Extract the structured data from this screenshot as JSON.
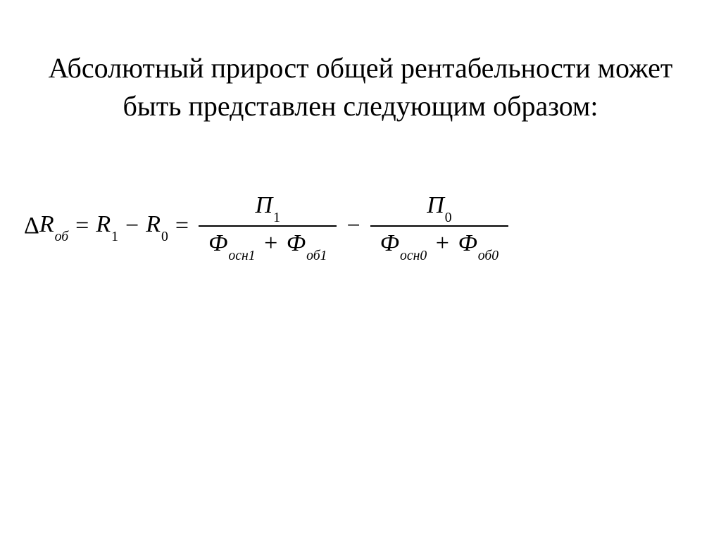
{
  "title": "Абсолютный прирост общей рентабельности может быть представлен следующим образом:",
  "formula": {
    "lhs": {
      "delta": "Δ",
      "R": "R",
      "sub_ob": "об"
    },
    "eq1": "=",
    "r1": {
      "R": "R",
      "sub": "1"
    },
    "minus1": "−",
    "r0": {
      "R": "R",
      "sub": "0"
    },
    "eq2": "=",
    "frac1": {
      "num": {
        "P": "П",
        "sub": "1"
      },
      "den": {
        "F1": "Ф",
        "sub_osn1": "осн1",
        "plus": "+",
        "F2": "Ф",
        "sub_ob1": "об1"
      }
    },
    "minus2": "−",
    "frac2": {
      "num": {
        "P": "П",
        "sub": "0"
      },
      "den": {
        "F1": "Ф",
        "sub_osn0": "осн0",
        "plus": "+",
        "F2": "Ф",
        "sub_ob0": "об0"
      }
    }
  }
}
